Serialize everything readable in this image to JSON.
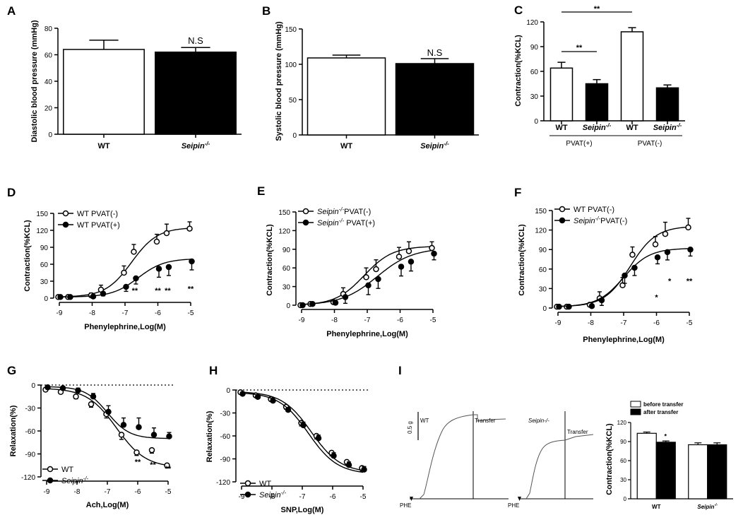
{
  "figure": {
    "panels": {
      "A": {
        "label": "A",
        "ylabel": "Diastolic blood pressure (mmHg)",
        "annotation": "N.S"
      },
      "B": {
        "label": "B",
        "ylabel": "Systolic blood pressure (mmHg)",
        "annotation": "N.S"
      },
      "C": {
        "label": "C",
        "ylabel": "Contraction(%KCL)",
        "sig_top": "**",
        "sig_inner": "**",
        "group1": "PVAT(+)",
        "group2": "PVAT(-)"
      },
      "D": {
        "label": "D",
        "xlabel": "Phenylephrine,Log(M)",
        "ylabel": "Contraction(%KCL)"
      },
      "E": {
        "label": "E",
        "xlabel": "Phenylephrine,Log(M)",
        "ylabel": "Contraction(%KCL)"
      },
      "F": {
        "label": "F",
        "xlabel": "Phenylephrine,Log(M)",
        "ylabel": "Contraction(%KCL)"
      },
      "G": {
        "label": "G",
        "xlabel": "Ach,Log(M)",
        "ylabel": "Relaxation(%)"
      },
      "H": {
        "label": "H",
        "xlabel": "SNP,Log(M)",
        "ylabel": "Relaxation(%)"
      },
      "I": {
        "label": "I",
        "scale_text": "0.5 g",
        "phe_text": "PHE",
        "wt_text": "WT",
        "seipin_text": "Seipin-/-",
        "transfer_text": "Transfer",
        "ylabel": "Contraction(%KCL)"
      }
    },
    "genotype": {
      "wt": "WT",
      "seipin_base": "Seipin",
      "sup": "-/-"
    }
  },
  "chart_data": [
    {
      "id": "A",
      "type": "bar",
      "categories": [
        "WT",
        "Seipin-/-"
      ],
      "values": [
        64,
        62
      ],
      "errors": [
        7,
        3.5
      ],
      "colors": [
        "#ffffff",
        "#000000"
      ],
      "ylim": [
        0,
        80
      ],
      "yticks": [
        0,
        20,
        40,
        60,
        80
      ]
    },
    {
      "id": "B",
      "type": "bar",
      "categories": [
        "WT",
        "Seipin-/-"
      ],
      "values": [
        109,
        101
      ],
      "errors": [
        4,
        7
      ],
      "colors": [
        "#ffffff",
        "#000000"
      ],
      "ylim": [
        0,
        150
      ],
      "yticks": [
        0,
        50,
        100,
        150
      ]
    },
    {
      "id": "C",
      "type": "bar",
      "categories": [
        "WT",
        "Seipin-/-",
        "WT",
        "Seipin-/-"
      ],
      "values": [
        64,
        45,
        108,
        40
      ],
      "errors": [
        7,
        5,
        5,
        3.5
      ],
      "colors": [
        "#ffffff",
        "#000000",
        "#ffffff",
        "#000000"
      ],
      "ylim": [
        0,
        120
      ],
      "yticks": [
        0,
        30,
        60,
        90,
        120
      ]
    },
    {
      "id": "D",
      "type": "line",
      "x": [
        -9,
        -8.7,
        -8,
        -7.7,
        -7,
        -6.7,
        -6,
        -5.7,
        -5
      ],
      "xlim": [
        -9,
        -5
      ],
      "xticks": [
        -9,
        -8,
        -7,
        -6,
        -5
      ],
      "ylim": [
        0,
        150
      ],
      "yticks": [
        0,
        30,
        60,
        90,
        120,
        150
      ],
      "series": [
        {
          "name": "WT PVAT(-)",
          "values": [
            2,
            2,
            5,
            15,
            45,
            82,
            100,
            115,
            123
          ],
          "errors": [
            1,
            1,
            4,
            8,
            12,
            13,
            13,
            16,
            12
          ],
          "open": true,
          "curve": {
            "bottom": 2,
            "top": 125,
            "ec50": -6.8,
            "hill": 1.1
          }
        },
        {
          "name": "WT PVAT(+)",
          "values": [
            2,
            2,
            3,
            8,
            20,
            35,
            52,
            55,
            65
          ],
          "errors": [
            1,
            1,
            2,
            4,
            8,
            10,
            15,
            15,
            15
          ],
          "open": false,
          "curve": {
            "bottom": 2,
            "top": 70,
            "ec50": -6.6,
            "hill": 1.1
          }
        }
      ],
      "stars": [
        {
          "x": -6.7,
          "y": 14,
          "text": "**"
        },
        {
          "x": -6,
          "y": 14,
          "text": "**"
        },
        {
          "x": -5.7,
          "y": 14,
          "text": "**"
        },
        {
          "x": -5,
          "y": 17,
          "text": "**"
        }
      ]
    },
    {
      "id": "E",
      "type": "line",
      "x": [
        -9,
        -8.7,
        -8,
        -7.7,
        -7,
        -6.7,
        -6,
        -5.7,
        -5
      ],
      "xlim": [
        -9,
        -5
      ],
      "xticks": [
        -9,
        -8,
        -7,
        -6,
        -5
      ],
      "ylim": [
        0,
        150
      ],
      "yticks": [
        0,
        30,
        60,
        90,
        120,
        150
      ],
      "series": [
        {
          "name": "Seipin-/- PVAT(-)",
          "values": [
            0,
            2,
            5,
            18,
            45,
            58,
            78,
            87,
            92
          ],
          "errors": [
            1,
            1,
            3,
            10,
            15,
            15,
            15,
            15,
            10
          ],
          "open": true,
          "curve": {
            "bottom": 0,
            "top": 95,
            "ec50": -7.1,
            "hill": 1.0
          }
        },
        {
          "name": "Seipin-/- PVAT(+)",
          "values": [
            0,
            2,
            4,
            13,
            32,
            42,
            62,
            70,
            83
          ],
          "errors": [
            1,
            1,
            3,
            10,
            15,
            15,
            15,
            15,
            10
          ],
          "open": false,
          "curve": {
            "bottom": 0,
            "top": 92,
            "ec50": -6.7,
            "hill": 0.8
          }
        }
      ],
      "stars": []
    },
    {
      "id": "F",
      "type": "line",
      "x": [
        -9,
        -8.7,
        -8,
        -7.7,
        -7,
        -6.7,
        -6,
        -5.7,
        -5
      ],
      "xlim": [
        -9,
        -5
      ],
      "xticks": [
        -9,
        -8,
        -7,
        -6,
        -5
      ],
      "ylim": [
        0,
        150
      ],
      "yticks": [
        0,
        30,
        60,
        90,
        120,
        150
      ],
      "series": [
        {
          "name": "WT PVAT(-)",
          "values": [
            2,
            2,
            5,
            15,
            35,
            82,
            98,
            114,
            124
          ],
          "errors": [
            1,
            1,
            3,
            10,
            12,
            12,
            12,
            18,
            14
          ],
          "open": true,
          "curve": {
            "bottom": 2,
            "top": 126,
            "ec50": -6.8,
            "hill": 1.1
          }
        },
        {
          "name": "Seipin-/- PVAT(-)",
          "values": [
            2,
            2,
            3,
            12,
            50,
            62,
            78,
            86,
            90
          ],
          "errors": [
            1,
            1,
            2,
            8,
            12,
            12,
            10,
            12,
            10
          ],
          "open": false,
          "curve": {
            "bottom": 2,
            "top": 92,
            "ec50": -7.0,
            "hill": 1.1
          }
        }
      ],
      "stars": [
        {
          "x": -6,
          "y": 17,
          "text": "*"
        },
        {
          "x": -5.6,
          "y": 42,
          "text": "*"
        },
        {
          "x": -5,
          "y": 42,
          "text": "**"
        }
      ]
    },
    {
      "id": "G",
      "type": "line",
      "x": [
        -9,
        -8.5,
        -8,
        -7.5,
        -7,
        -6.5,
        -6,
        -5.5,
        -5
      ],
      "xlim": [
        -9,
        -5
      ],
      "xticks": [
        -9,
        -8,
        -7,
        -6,
        -5
      ],
      "ylim": [
        -120,
        0
      ],
      "yticks": [
        0,
        -30,
        -60,
        -90,
        -120
      ],
      "series": [
        {
          "name": "WT",
          "values": [
            -6,
            -9,
            -15,
            -25,
            -38,
            -65,
            -88,
            -85,
            -105
          ],
          "errors": [
            2,
            2,
            3,
            4,
            5,
            6,
            4,
            4,
            3
          ],
          "open": true,
          "curve": {
            "bottom": -4,
            "top": -108,
            "ec50": -6.7,
            "hill": 0.9
          }
        },
        {
          "name": "Seipin-/-",
          "values": [
            -3,
            -4,
            -7,
            -15,
            -35,
            -52,
            -55,
            -65,
            -67
          ],
          "errors": [
            2,
            2,
            3,
            4,
            8,
            9,
            12,
            9,
            5
          ],
          "open": false,
          "curve": {
            "bottom": -2,
            "top": -70,
            "ec50": -7.0,
            "hill": 1.2
          }
        }
      ],
      "stars": [
        {
          "x": -6,
          "y": -100,
          "text": "**"
        },
        {
          "x": -5.5,
          "y": -104,
          "text": "**"
        },
        {
          "x": -5,
          "y": -109,
          "text": "**"
        }
      ]
    },
    {
      "id": "H",
      "type": "line",
      "x": [
        -9,
        -8.5,
        -8,
        -7.5,
        -7,
        -6.5,
        -6,
        -5.5,
        -5
      ],
      "xlim": [
        -9,
        -5
      ],
      "xticks": [
        -9,
        -8,
        -7,
        -6,
        -5
      ],
      "ylim": [
        -120,
        0
      ],
      "yticks": [
        0,
        -30,
        -60,
        -90,
        -120
      ],
      "series": [
        {
          "name": "WT",
          "values": [
            -3,
            -7,
            -12,
            -22,
            -43,
            -60,
            -82,
            -94,
            -102
          ],
          "errors": [
            2,
            2,
            2,
            3,
            4,
            4,
            4,
            4,
            4
          ],
          "open": true,
          "curve": {
            "bottom": -2,
            "top": -108,
            "ec50": -6.7,
            "hill": 0.9
          }
        },
        {
          "name": "Seipin-/-",
          "values": [
            -5,
            -9,
            -14,
            -26,
            -46,
            -63,
            -86,
            -98,
            -104
          ],
          "errors": [
            2,
            2,
            2,
            3,
            4,
            4,
            4,
            4,
            4
          ],
          "open": false,
          "curve": {
            "bottom": -3,
            "top": -110,
            "ec50": -6.8,
            "hill": 0.9
          }
        }
      ],
      "stars": []
    },
    {
      "id": "I",
      "type": "bar",
      "categories": [
        "WT",
        "Seipin-/-"
      ],
      "ylim": [
        0,
        120
      ],
      "yticks": [
        0,
        30,
        60,
        90,
        120
      ],
      "series": [
        {
          "name": "before transfer",
          "values": [
            103,
            85
          ],
          "errors": [
            2,
            3
          ],
          "color": "#ffffff"
        },
        {
          "name": "after transfer",
          "values": [
            89,
            85
          ],
          "errors": [
            2,
            3
          ],
          "color": "#000000"
        }
      ],
      "stars": [
        {
          "text": "*"
        }
      ]
    }
  ]
}
